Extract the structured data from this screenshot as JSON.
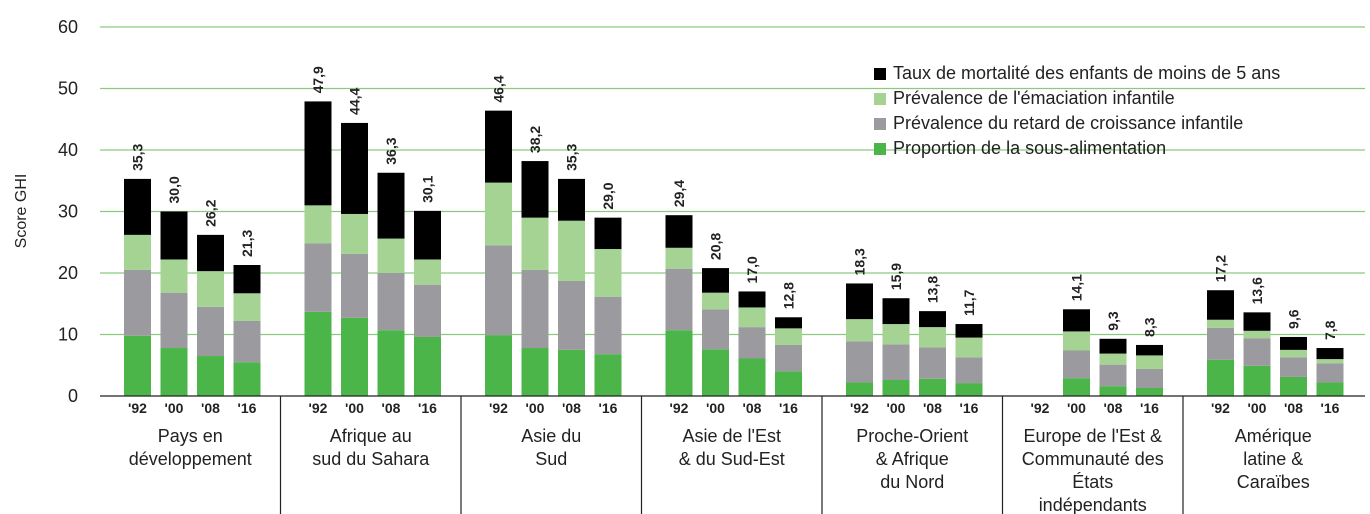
{
  "chart_data": {
    "type": "bar",
    "stacked": true,
    "ylabel": "Score GHI",
    "ylim": [
      0,
      60
    ],
    "yticks": [
      0,
      10,
      20,
      30,
      40,
      50,
      60
    ],
    "grid": true,
    "legend_position": "top-right",
    "years": [
      "'92",
      "'00",
      "'08",
      "'16"
    ],
    "groups": [
      {
        "name": "Pays en développement",
        "lines": [
          "Pays en",
          "développement"
        ]
      },
      {
        "name": "Afrique au sud du Sahara",
        "lines": [
          "Afrique au",
          "sud du Sahara"
        ]
      },
      {
        "name": "Asie du Sud",
        "lines": [
          "Asie du",
          "Sud"
        ]
      },
      {
        "name": "Asie de l'Est & du Sud-Est",
        "lines": [
          "Asie de l'Est",
          "& du Sud-Est"
        ]
      },
      {
        "name": "Proche-Orient & Afrique du Nord",
        "lines": [
          "Proche-Orient",
          "& Afrique",
          "du Nord"
        ]
      },
      {
        "name": "Europe de l'Est & Communauté des États indépendants",
        "lines": [
          "Europe de l'Est &",
          "Communauté des",
          "États",
          "indépendants"
        ]
      },
      {
        "name": "Amérique latine & Caraïbes",
        "lines": [
          "Amérique",
          "latine &",
          "Caraïbes"
        ]
      }
    ],
    "series": [
      {
        "name": "Proportion de la sous-alimentation",
        "color": "#4bb54a",
        "values": [
          [
            9.8,
            7.8,
            6.5,
            5.5
          ],
          [
            13.7,
            12.7,
            10.7,
            9.6
          ],
          [
            9.9,
            7.8,
            7.5,
            6.8
          ],
          [
            10.7,
            7.6,
            6.1,
            4.0
          ],
          [
            2.2,
            2.6,
            2.8,
            2.1
          ],
          [
            null,
            2.9,
            1.6,
            1.3
          ],
          [
            5.9,
            4.9,
            3.1,
            2.2
          ]
        ]
      },
      {
        "name": "Prévalence du retard de croissance infantile",
        "color": "#9b9b9f",
        "values": [
          [
            10.7,
            9.0,
            8.0,
            6.7
          ],
          [
            11.1,
            10.4,
            9.3,
            8.5
          ],
          [
            14.6,
            12.7,
            11.2,
            9.3
          ],
          [
            10.0,
            6.5,
            5.1,
            4.3
          ],
          [
            6.7,
            5.8,
            5.1,
            4.2
          ],
          [
            null,
            4.5,
            3.5,
            3.1
          ],
          [
            5.2,
            4.5,
            3.2,
            3.1
          ]
        ]
      },
      {
        "name": "Prévalence de l'émaciation infantile",
        "color": "#a4d393",
        "values": [
          [
            5.7,
            5.4,
            5.8,
            4.5
          ],
          [
            6.2,
            6.5,
            5.6,
            4.1
          ],
          [
            10.2,
            8.5,
            9.8,
            7.8
          ],
          [
            3.4,
            2.7,
            3.2,
            2.7
          ],
          [
            3.6,
            3.3,
            3.3,
            3.2
          ],
          [
            null,
            3.1,
            1.8,
            2.2
          ],
          [
            1.3,
            1.2,
            1.2,
            0.7
          ]
        ]
      },
      {
        "name": "Taux de mortalité des enfants de moins de 5 ans",
        "color": "#000000",
        "values": [
          [
            9.1,
            7.8,
            5.9,
            4.6
          ],
          [
            16.9,
            14.8,
            10.7,
            7.9
          ],
          [
            11.7,
            9.2,
            6.8,
            5.1
          ],
          [
            5.3,
            4.0,
            2.6,
            1.8
          ],
          [
            5.8,
            4.2,
            2.6,
            2.2
          ],
          [
            null,
            3.6,
            2.4,
            1.7
          ],
          [
            4.8,
            3.0,
            2.1,
            1.8
          ]
        ]
      }
    ],
    "totals": [
      [
        "35,3",
        "30,0",
        "26,2",
        "21,3"
      ],
      [
        "47,9",
        "44,4",
        "36,3",
        "30,1"
      ],
      [
        "46,4",
        "38,2",
        "35,3",
        "29,0"
      ],
      [
        "29,4",
        "20,8",
        "17,0",
        "12,8"
      ],
      [
        "18,3",
        "15,9",
        "13,8",
        "11,7"
      ],
      [
        "",
        "14,1",
        "9,3",
        "8,3"
      ],
      [
        "17,2",
        "13,6",
        "9,6",
        "7,8"
      ]
    ]
  }
}
